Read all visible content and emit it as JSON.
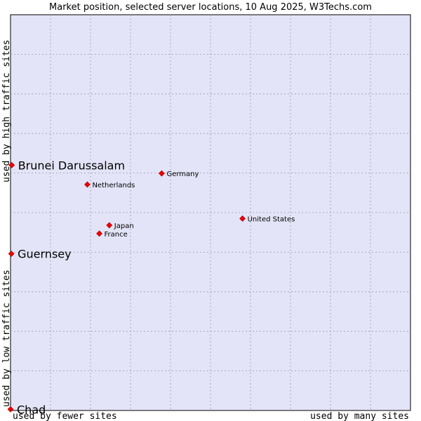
{
  "chart_data": {
    "type": "scatter",
    "title": "Market position, selected server locations, 10 Aug 2025, W3Techs.com",
    "xlabel_low": "used by fewer sites",
    "xlabel_high": "used by many sites",
    "ylabel_low": "used by low traffic sites",
    "ylabel_high": "used by high traffic sites",
    "xlim": [
      0,
      100
    ],
    "ylim": [
      0,
      100
    ],
    "grid": true,
    "points": [
      {
        "label": "Brunei Darussalam",
        "x": 0.3,
        "y": 62.0,
        "highlight": true
      },
      {
        "label": "Guernsey",
        "x": 0.2,
        "y": 39.6,
        "highlight": true
      },
      {
        "label": "Chad",
        "x": 0.0,
        "y": 0.3,
        "highlight": true
      },
      {
        "label": "Germany",
        "x": 37.8,
        "y": 59.9,
        "highlight": false
      },
      {
        "label": "Netherlands",
        "x": 19.2,
        "y": 57.1,
        "highlight": false
      },
      {
        "label": "United States",
        "x": 58.0,
        "y": 48.5,
        "highlight": false
      },
      {
        "label": "Japan",
        "x": 24.7,
        "y": 46.8,
        "highlight": false
      },
      {
        "label": "France",
        "x": 22.2,
        "y": 44.7,
        "highlight": false
      }
    ]
  }
}
